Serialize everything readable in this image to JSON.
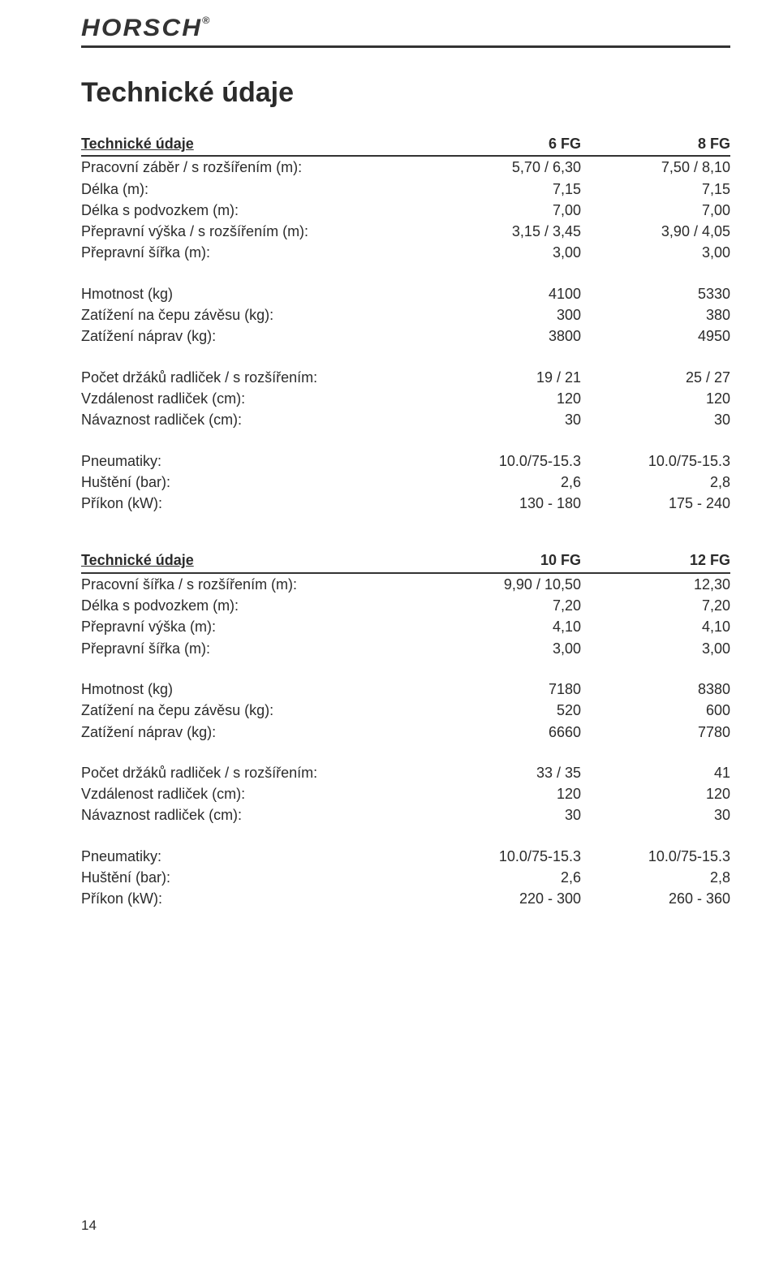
{
  "brand": {
    "name": "HORSCH",
    "mark": "®"
  },
  "title": "Technické údaje",
  "page_number": "14",
  "colors": {
    "text": "#2b2b2b",
    "rule": "#333333",
    "background": "#ffffff"
  },
  "typography": {
    "body_fontsize": 18,
    "title_fontsize": 34,
    "brand_fontsize": 30
  },
  "table1": {
    "header": {
      "label": "Technické údaje",
      "colA": "6 FG",
      "colB": "8 FG"
    },
    "groups": [
      {
        "rows": [
          {
            "label": "Pracovní záběr / s rozšířením (m):",
            "a": "5,70 / 6,30",
            "b": "7,50 / 8,10"
          },
          {
            "label": "Délka (m):",
            "a": "7,15",
            "b": "7,15"
          },
          {
            "label": "Délka s podvozkem (m):",
            "a": "7,00",
            "b": "7,00"
          },
          {
            "label": "Přepravní výška / s rozšířením (m):",
            "a": "3,15 / 3,45",
            "b": "3,90 / 4,05"
          },
          {
            "label": "Přepravní šířka (m):",
            "a": "3,00",
            "b": "3,00"
          }
        ]
      },
      {
        "rows": [
          {
            "label": "Hmotnost (kg)",
            "a": "4100",
            "b": "5330"
          },
          {
            "label": "Zatížení na čepu závěsu (kg):",
            "a": "300",
            "b": "380"
          },
          {
            "label": "Zatížení náprav (kg):",
            "a": "3800",
            "b": "4950"
          }
        ]
      },
      {
        "rows": [
          {
            "label": "Počet držáků radliček / s rozšířením:",
            "a": "19 / 21",
            "b": "25 / 27"
          },
          {
            "label": "Vzdálenost radliček (cm):",
            "a": "120",
            "b": "120"
          },
          {
            "label": "Návaznost radliček (cm):",
            "a": "30",
            "b": "30"
          }
        ]
      },
      {
        "rows": [
          {
            "label": "Pneumatiky:",
            "a": "10.0/75-15.3",
            "b": "10.0/75-15.3"
          },
          {
            "label": "Huštění (bar):",
            "a": "2,6",
            "b": "2,8"
          },
          {
            "label": "Příkon (kW):",
            "a": "130 - 180",
            "b": "175 - 240"
          }
        ]
      }
    ]
  },
  "table2": {
    "header": {
      "label": "Technické údaje",
      "colA": "10 FG",
      "colB": "12 FG"
    },
    "groups": [
      {
        "rows": [
          {
            "label": "Pracovní šířka / s rozšířením (m):",
            "a": "9,90 / 10,50",
            "b": "12,30"
          },
          {
            "label": "Délka s podvozkem (m):",
            "a": "7,20",
            "b": "7,20"
          },
          {
            "label": "Přepravní výška (m):",
            "a": "4,10",
            "b": "4,10"
          },
          {
            "label": "Přepravní šířka (m):",
            "a": "3,00",
            "b": "3,00"
          }
        ]
      },
      {
        "rows": [
          {
            "label": "Hmotnost (kg)",
            "a": "7180",
            "b": "8380"
          },
          {
            "label": "Zatížení na čepu závěsu (kg):",
            "a": "520",
            "b": "600"
          },
          {
            "label": "Zatížení náprav (kg):",
            "a": "6660",
            "b": "7780"
          }
        ]
      },
      {
        "rows": [
          {
            "label": "Počet držáků radliček / s rozšířením:",
            "a": "33 / 35",
            "b": "41"
          },
          {
            "label": "Vzdálenost radliček (cm):",
            "a": "120",
            "b": "120"
          },
          {
            "label": "Návaznost radliček (cm):",
            "a": "30",
            "b": "30"
          }
        ]
      },
      {
        "rows": [
          {
            "label": "Pneumatiky:",
            "a": "10.0/75-15.3",
            "b": "10.0/75-15.3"
          },
          {
            "label": "Huštění (bar):",
            "a": "2,6",
            "b": "2,8"
          },
          {
            "label": "Příkon (kW):",
            "a": "220 - 300",
            "b": "260 - 360"
          }
        ]
      }
    ]
  }
}
